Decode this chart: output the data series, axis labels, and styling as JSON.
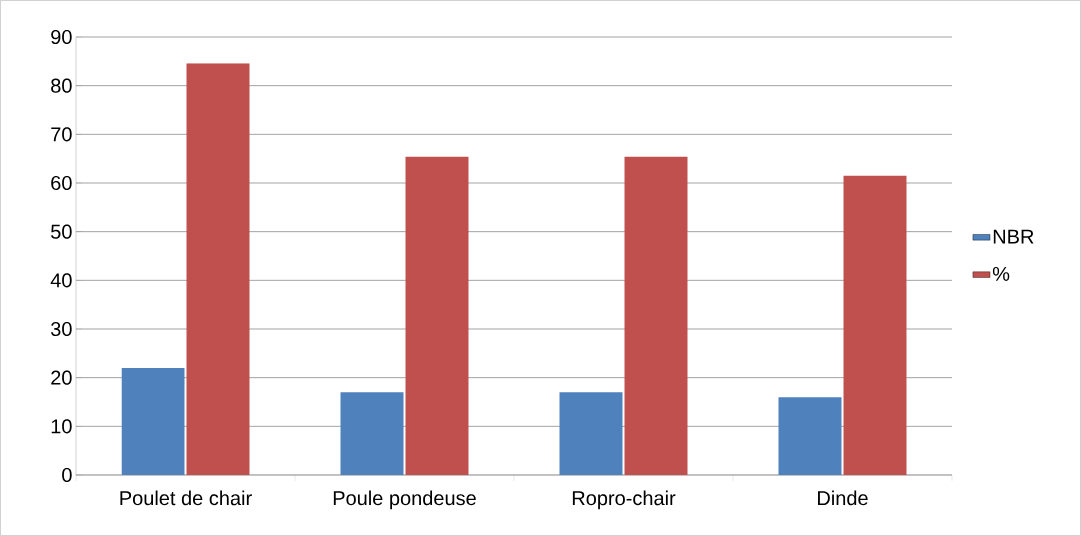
{
  "chart_data": {
    "type": "bar",
    "categories": [
      "Poulet de chair",
      "Poule pondeuse",
      "Ropro-chair",
      "Dinde"
    ],
    "series": [
      {
        "name": "NBR",
        "color": "#4f81bd",
        "values": [
          22,
          17,
          17,
          16
        ]
      },
      {
        "name": "%",
        "color": "#c0504d",
        "values": [
          84.6,
          65.4,
          65.4,
          61.5
        ]
      }
    ],
    "ylim": [
      0,
      90
    ],
    "yticks": [
      0,
      10,
      20,
      30,
      40,
      50,
      60,
      70,
      80,
      90
    ],
    "grid": "y",
    "legend": "right"
  }
}
